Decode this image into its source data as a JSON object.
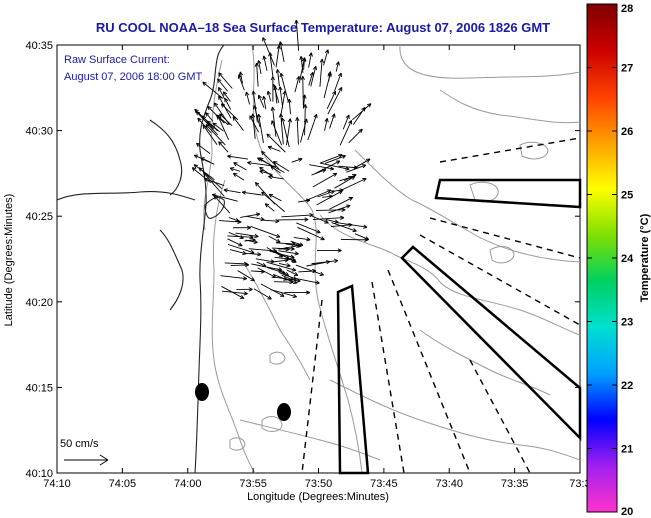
{
  "title": "RU COOL  NOAA–18  Sea Surface Temperature:  August 07, 2006 1826 GMT",
  "annotation": {
    "line1": "Raw Surface Current:",
    "line2": "August 07, 2006 18:00 GMT"
  },
  "scale_label": "50 cm/s",
  "xlabel": "Longitude (Degrees:Minutes)",
  "ylabel": "Latitude (Degrees:Minutes)",
  "colorbar": {
    "label": "Temperature (°C)",
    "ticks": [
      "20",
      "21",
      "22",
      "23",
      "24",
      "25",
      "26",
      "27",
      "28"
    ],
    "colors": [
      "#ff33cc",
      "#a020f0",
      "#0000ff",
      "#00a0ff",
      "#00e0d0",
      "#00d060",
      "#80e000",
      "#ffff00",
      "#ffa000",
      "#ff4000",
      "#cc0000",
      "#800000"
    ]
  },
  "chart_data": {
    "type": "map",
    "xlim_minutes": [
      -10,
      33
    ],
    "ylim_minutes": [
      10,
      35
    ],
    "x_tick_labels": [
      "74:10",
      "74:05",
      "74:00",
      "73:55",
      "73:50",
      "73:45",
      "73:40",
      "73:35",
      "73:3"
    ],
    "y_tick_labels": [
      "40:35",
      "40:30",
      "40:25",
      "40:20",
      "40:15",
      "40:10"
    ]
  }
}
